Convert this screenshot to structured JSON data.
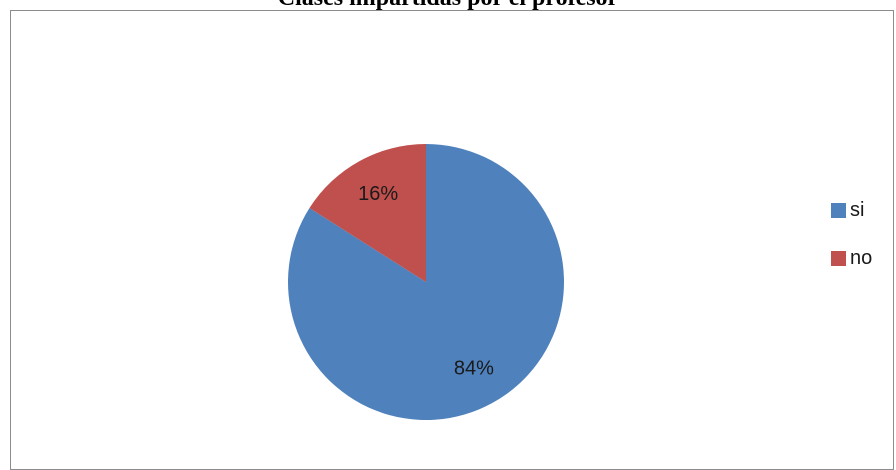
{
  "chart_data": {
    "type": "pie",
    "title": "Clases impartidas por el profesor",
    "categories": [
      "si",
      "no"
    ],
    "values": [
      84,
      16
    ],
    "labels": [
      "84%",
      "16%"
    ],
    "colors": [
      "#4f81bd",
      "#c0504d"
    ],
    "legend_position": "right"
  }
}
